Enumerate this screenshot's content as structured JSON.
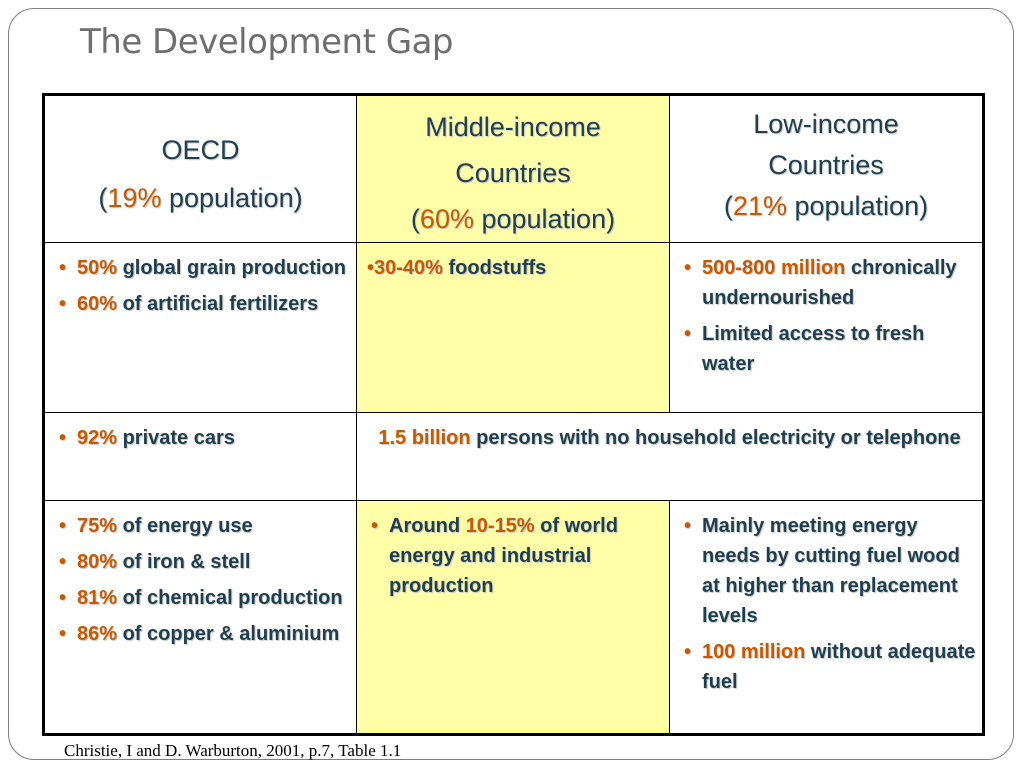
{
  "title": "The Development Gap",
  "source": "Christie, I and D. Warburton, 2001, p.7, Table 1.1",
  "header": {
    "oecd": {
      "line1": "OECD",
      "open": "(",
      "pct": "19%",
      "rest": " population)"
    },
    "middle": {
      "line1": "Middle-income",
      "line2": "Countries",
      "open": "(",
      "pct": "60%",
      "rest": " population)"
    },
    "low": {
      "line1": "Low-income",
      "line2": "Countries",
      "open": "(",
      "pct": "21%",
      "rest": " population)"
    }
  },
  "row1": {
    "oecd": [
      {
        "pct": "50%",
        "text": " global grain production"
      },
      {
        "pct": "60%",
        "text": " of artificial fertilizers"
      }
    ],
    "middle": {
      "bullet": "•",
      "pct": "30-40%",
      "text": " foodstuffs"
    },
    "low": [
      {
        "pct": "500-800 million",
        "text": " chronically undernourished"
      },
      {
        "pct": "",
        "text": "Limited access to fresh water"
      }
    ]
  },
  "row2": {
    "oecd": {
      "pct": "92%",
      "text": " private cars"
    },
    "merged": {
      "pct": "1.5 billion",
      "text": " persons with no household electricity or telephone"
    }
  },
  "row3": {
    "oecd": [
      {
        "pct": "75%",
        "text": " of energy use"
      },
      {
        "pct": "80%",
        "text": " of iron & stell"
      },
      {
        "pct": "81%",
        "text": " of chemical production"
      },
      {
        "pct": "86%",
        "text": " of copper & aluminium"
      }
    ],
    "middle": {
      "pre": "Around ",
      "pct": "10-15%",
      "text": " of world energy and industrial production"
    },
    "low": [
      {
        "pct": "",
        "text": "Mainly meeting energy needs by cutting fuel wood at higher than replacement levels"
      },
      {
        "pct": "100 million",
        "text": " without adequate fuel"
      }
    ]
  },
  "colors": {
    "accent": "#c75a00",
    "text": "#1f3f4f",
    "highlight": "#ffffa8",
    "border": "#000000"
  }
}
